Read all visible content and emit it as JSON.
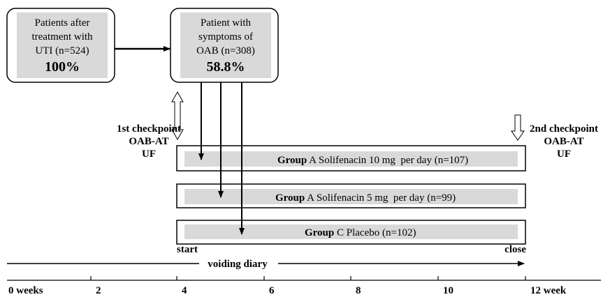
{
  "boxes": [
    {
      "lines": [
        "Patients after",
        "treatment with",
        "UTI (n=524)"
      ],
      "percent": "100%"
    },
    {
      "lines": [
        "Patient with",
        "symptoms of",
        "OAB (n=308)"
      ],
      "percent": "58.8%"
    }
  ],
  "checkpoints": [
    {
      "lines": [
        "1st checkpoint",
        "OAB-AT",
        "UF"
      ]
    },
    {
      "lines": [
        "2nd checkpoint",
        "OAB-AT",
        "UF"
      ]
    }
  ],
  "groups": [
    {
      "label": "Group",
      "text": " A Solifenacin 10 mg  per day (n=107)"
    },
    {
      "label": "Group",
      "text": " A Solifenacin 5 mg  per day (n=99)"
    },
    {
      "label": "Group",
      "text": " C Placebo (n=102)"
    }
  ],
  "start": "start",
  "close": "close",
  "diary": "voiding diary",
  "timeline": [
    "0 weeks",
    "2",
    "4",
    "6",
    "8",
    "10",
    "12 week"
  ]
}
